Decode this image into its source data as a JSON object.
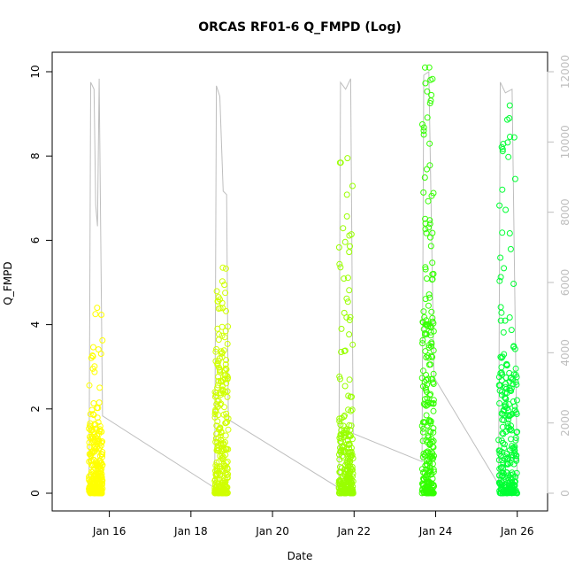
{
  "chart_data": {
    "type": "scatter",
    "title": "ORCAS RF01-6 Q_FMPD (Log)",
    "xlabel": "Date",
    "ylabel": "Q_FMPD",
    "x_is_date": true,
    "xlim": [
      "2016-01-15",
      "2016-01-26 09:00"
    ],
    "ylim": [
      0,
      10
    ],
    "y_ticks": [
      0,
      2,
      4,
      6,
      8,
      10
    ],
    "x_ticks": [
      {
        "date": "2016-01-16",
        "label": "Jan 16"
      },
      {
        "date": "2016-01-18",
        "label": "Jan 18"
      },
      {
        "date": "2016-01-20",
        "label": "Jan 20"
      },
      {
        "date": "2016-01-22",
        "label": "Jan 22"
      },
      {
        "date": "2016-01-24",
        "label": "Jan 24"
      },
      {
        "date": "2016-01-26",
        "label": "Jan 26"
      }
    ],
    "y2lim": [
      0,
      12000
    ],
    "y2_ticks": [
      0,
      2000,
      4000,
      6000,
      8000,
      10000,
      12000
    ],
    "y2_color": "#bebebe",
    "flights": [
      {
        "start": "2016-01-15 12:00",
        "end": "2016-01-15 20:00",
        "color": "#ffff00",
        "max": 4.4,
        "p90": 1.6
      },
      {
        "start": "2016-01-18 14:00",
        "end": "2016-01-18 22:00",
        "color": "#d0ff00",
        "max": 5.35,
        "p90": 2.9
      },
      {
        "start": "2016-01-21 15:00",
        "end": "2016-01-21 23:30",
        "color": "#99ff00",
        "max": 7.95,
        "p90": 1.5
      },
      {
        "start": "2016-01-23 16:00",
        "end": "2016-01-23 23:00",
        "color": "#33ff00",
        "max": 10.1,
        "p90": 4.0
      },
      {
        "start": "2016-01-25 13:00",
        "end": "2016-01-26 00:00",
        "color": "#00ff33",
        "max": 9.2,
        "p90": 3.0
      }
    ],
    "y2_line": [
      {
        "date": "2016-01-15 12:00",
        "value": 0
      },
      {
        "date": "2016-01-15 13:00",
        "value": 11700
      },
      {
        "date": "2016-01-15 15:00",
        "value": 11500
      },
      {
        "date": "2016-01-15 16:00",
        "value": 8200
      },
      {
        "date": "2016-01-15 17:00",
        "value": 7600
      },
      {
        "date": "2016-01-15 18:00",
        "value": 11800
      },
      {
        "date": "2016-01-15 20:00",
        "value": 2200
      },
      {
        "date": "2016-01-18 14:00",
        "value": 150
      },
      {
        "date": "2016-01-18 15:00",
        "value": 11600
      },
      {
        "date": "2016-01-18 17:00",
        "value": 11300
      },
      {
        "date": "2016-01-18 19:00",
        "value": 8600
      },
      {
        "date": "2016-01-18 21:00",
        "value": 8500
      },
      {
        "date": "2016-01-18 22:00",
        "value": 2100
      },
      {
        "date": "2016-01-21 15:00",
        "value": 150
      },
      {
        "date": "2016-01-21 16:00",
        "value": 11700
      },
      {
        "date": "2016-01-21 19:00",
        "value": 11500
      },
      {
        "date": "2016-01-21 22:00",
        "value": 11800
      },
      {
        "date": "2016-01-21 23:30",
        "value": 1700
      },
      {
        "date": "2016-01-23 16:00",
        "value": 900
      },
      {
        "date": "2016-01-23 17:00",
        "value": 11900
      },
      {
        "date": "2016-01-23 20:00",
        "value": 12000
      },
      {
        "date": "2016-01-23 23:00",
        "value": 3300
      },
      {
        "date": "2016-01-25 13:00",
        "value": 250
      },
      {
        "date": "2016-01-25 14:00",
        "value": 11700
      },
      {
        "date": "2016-01-25 17:00",
        "value": 11400
      },
      {
        "date": "2016-01-25 21:00",
        "value": 11500
      },
      {
        "date": "2016-01-26 00:00",
        "value": 400
      }
    ]
  }
}
